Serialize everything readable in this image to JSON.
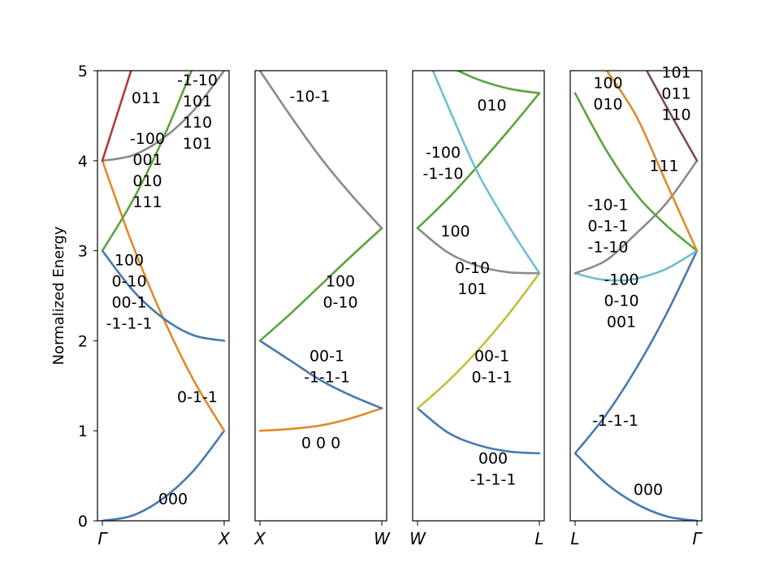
{
  "chart_data": {
    "type": "line",
    "ylabel": "Normalized Energy",
    "ylim": [
      0,
      5
    ],
    "yticks": [
      "0",
      "1",
      "2",
      "3",
      "4",
      "5"
    ],
    "grid": false,
    "panels": [
      {
        "x_labels": [
          "Γ",
          "X"
        ],
        "series": [
          {
            "color": "#4878b0",
            "points": [
              [
                0,
                0
              ],
              [
                0.25,
                0.06
              ],
              [
                0.5,
                0.25
              ],
              [
                0.75,
                0.56
              ],
              [
                1,
                1
              ]
            ]
          },
          {
            "color": "#e08a2c",
            "points": [
              [
                0,
                4
              ],
              [
                0.25,
                3.06
              ],
              [
                0.5,
                2.25
              ],
              [
                0.75,
                1.56
              ],
              [
                1,
                1
              ]
            ]
          },
          {
            "color": "#4878b0",
            "points": [
              [
                0,
                3
              ],
              [
                0.25,
                2.56
              ],
              [
                0.5,
                2.25
              ],
              [
                0.75,
                2.06
              ],
              [
                1,
                2
              ]
            ]
          },
          {
            "color": "#5ca33c",
            "points": [
              [
                0,
                3
              ],
              [
                0.25,
                3.56
              ],
              [
                0.5,
                4.25
              ],
              [
                0.75,
                5.06
              ]
            ]
          },
          {
            "color": "#8a8a8a",
            "points": [
              [
                0,
                4
              ],
              [
                0.25,
                4.06
              ],
              [
                0.5,
                4.25
              ],
              [
                0.75,
                4.56
              ],
              [
                1,
                5
              ]
            ]
          },
          {
            "color": "#b33a3a",
            "points": [
              [
                0,
                4
              ],
              [
                0.25,
                5.06
              ]
            ]
          }
        ],
        "annotations": [
          {
            "lines": [
              "011"
            ],
            "x": 0.36,
            "y": 4.7
          },
          {
            "lines": [
              "-1-10",
              "101",
              "110",
              "101"
            ],
            "x": 0.78,
            "y": 4.55
          },
          {
            "lines": [
              "-100",
              "001",
              "010",
              "111"
            ],
            "x": 0.37,
            "y": 3.9
          },
          {
            "lines": [
              "100",
              "0-10",
              "00-1",
              "-1-1-1"
            ],
            "x": 0.22,
            "y": 2.55
          },
          {
            "lines": [
              "0-1-1"
            ],
            "x": 0.78,
            "y": 1.38
          },
          {
            "lines": [
              "000"
            ],
            "x": 0.58,
            "y": 0.25
          }
        ]
      },
      {
        "x_labels": [
          "X",
          "W"
        ],
        "series": [
          {
            "color": "#e08a2c",
            "points": [
              [
                0,
                1
              ],
              [
                0.25,
                1.02
              ],
              [
                0.5,
                1.06
              ],
              [
                0.75,
                1.14
              ],
              [
                1,
                1.25
              ]
            ]
          },
          {
            "color": "#4878b0",
            "points": [
              [
                0,
                2
              ],
              [
                0.25,
                1.78
              ],
              [
                0.5,
                1.56
              ],
              [
                0.75,
                1.39
              ],
              [
                1,
                1.25
              ]
            ]
          },
          {
            "color": "#5ca33c",
            "points": [
              [
                0,
                2
              ],
              [
                0.25,
                2.3
              ],
              [
                0.5,
                2.62
              ],
              [
                0.75,
                2.94
              ],
              [
                1,
                3.25
              ]
            ]
          },
          {
            "color": "#8a8a8a",
            "points": [
              [
                0,
                5
              ],
              [
                0.25,
                4.5
              ],
              [
                0.5,
                4.03
              ],
              [
                0.75,
                3.62
              ],
              [
                1,
                3.25
              ]
            ]
          }
        ],
        "annotations": [
          {
            "lines": [
              "-10-1"
            ],
            "x": 0.41,
            "y": 4.72
          },
          {
            "lines": [
              "100",
              "0-10"
            ],
            "x": 0.66,
            "y": 2.55
          },
          {
            "lines": [
              "00-1",
              "-1-1-1"
            ],
            "x": 0.55,
            "y": 1.72
          },
          {
            "lines": [
              "0 0 0"
            ],
            "x": 0.5,
            "y": 0.87
          }
        ]
      },
      {
        "x_labels": [
          "W",
          "L"
        ],
        "series": [
          {
            "color": "#4878b0",
            "points": [
              [
                0,
                1.25
              ],
              [
                0.25,
                0.98
              ],
              [
                0.5,
                0.84
              ],
              [
                0.75,
                0.77
              ],
              [
                1,
                0.75
              ]
            ]
          },
          {
            "color": "#c0bf3a",
            "points": [
              [
                0,
                1.25
              ],
              [
                0.25,
                1.55
              ],
              [
                0.5,
                1.9
              ],
              [
                0.75,
                2.3
              ],
              [
                1,
                2.75
              ]
            ]
          },
          {
            "color": "#8a8a8a",
            "points": [
              [
                0,
                3.25
              ],
              [
                0.25,
                2.98
              ],
              [
                0.5,
                2.83
              ],
              [
                0.75,
                2.76
              ],
              [
                1,
                2.75
              ]
            ]
          },
          {
            "color": "#5ca33c",
            "points": [
              [
                0,
                3.25
              ],
              [
                0.25,
                3.58
              ],
              [
                0.5,
                3.95
              ],
              [
                0.75,
                4.34
              ],
              [
                1,
                4.75
              ]
            ]
          },
          {
            "color": "#6cc0d0",
            "points": [
              [
                0.12,
                5.02
              ],
              [
                0.3,
                4.45
              ],
              [
                0.5,
                3.85
              ],
              [
                0.75,
                3.27
              ],
              [
                1,
                2.75
              ]
            ]
          },
          {
            "color": "#5ca33c",
            "points": [
              [
                0.3,
                5.02
              ],
              [
                0.5,
                4.9
              ],
              [
                0.75,
                4.8
              ],
              [
                1,
                4.75
              ]
            ]
          }
        ],
        "annotations": [
          {
            "lines": [
              "010"
            ],
            "x": 0.61,
            "y": 4.62
          },
          {
            "lines": [
              "-100",
              "-1-10"
            ],
            "x": 0.21,
            "y": 3.98
          },
          {
            "lines": [
              "100"
            ],
            "x": 0.31,
            "y": 3.22
          },
          {
            "lines": [
              "0-10",
              "101"
            ],
            "x": 0.45,
            "y": 2.7
          },
          {
            "lines": [
              "00-1",
              "0-1-1"
            ],
            "x": 0.61,
            "y": 1.72
          },
          {
            "lines": [
              "000",
              "-1-1-1"
            ],
            "x": 0.62,
            "y": 0.58
          }
        ]
      },
      {
        "x_labels": [
          "L",
          "Γ"
        ],
        "series": [
          {
            "color": "#4878b0",
            "points": [
              [
                0,
                0.75
              ],
              [
                0.25,
                0.42
              ],
              [
                0.5,
                0.19
              ],
              [
                0.75,
                0.05
              ],
              [
                1,
                0
              ]
            ]
          },
          {
            "color": "#4878b0",
            "points": [
              [
                0,
                0.75
              ],
              [
                0.25,
                1.17
              ],
              [
                0.5,
                1.69
              ],
              [
                0.75,
                2.3
              ],
              [
                1,
                3
              ]
            ]
          },
          {
            "color": "#6cc0d0",
            "points": [
              [
                0,
                2.75
              ],
              [
                0.17,
                2.69
              ],
              [
                0.34,
                2.67
              ],
              [
                0.5,
                2.69
              ],
              [
                0.75,
                2.8
              ],
              [
                1,
                3
              ]
            ]
          },
          {
            "color": "#8a8a8a",
            "points": [
              [
                0,
                2.75
              ],
              [
                0.25,
                2.89
              ],
              [
                0.5,
                3.19
              ],
              [
                0.75,
                3.53
              ],
              [
                1,
                4
              ]
            ]
          },
          {
            "color": "#5ca33c",
            "points": [
              [
                0,
                4.75
              ],
              [
                0.25,
                4.13
              ],
              [
                0.5,
                3.63
              ],
              [
                0.75,
                3.28
              ],
              [
                1,
                3
              ]
            ]
          },
          {
            "color": "#e08a2c",
            "points": [
              [
                0.25,
                5.02
              ],
              [
                0.5,
                4.5
              ],
              [
                0.75,
                3.75
              ],
              [
                1,
                3
              ]
            ]
          },
          {
            "color": "#7a5048",
            "points": [
              [
                0.58,
                5.02
              ],
              [
                0.75,
                4.6
              ],
              [
                1,
                4
              ]
            ]
          }
        ],
        "annotations": [
          {
            "lines": [
              "100",
              "010"
            ],
            "x": 0.27,
            "y": 4.75
          },
          {
            "lines": [
              "101",
              "011",
              "110"
            ],
            "x": 0.83,
            "y": 4.75
          },
          {
            "lines": [
              "111"
            ],
            "x": 0.73,
            "y": 3.95
          },
          {
            "lines": [
              "-10-1",
              "0-1-1",
              "-1-10"
            ],
            "x": 0.27,
            "y": 3.28
          },
          {
            "lines": [
              "-100",
              "0-10",
              "001"
            ],
            "x": 0.38,
            "y": 2.45
          },
          {
            "lines": [
              "-1-1-1"
            ],
            "x": 0.33,
            "y": 1.12
          },
          {
            "lines": [
              "000"
            ],
            "x": 0.6,
            "y": 0.35
          }
        ]
      }
    ]
  }
}
